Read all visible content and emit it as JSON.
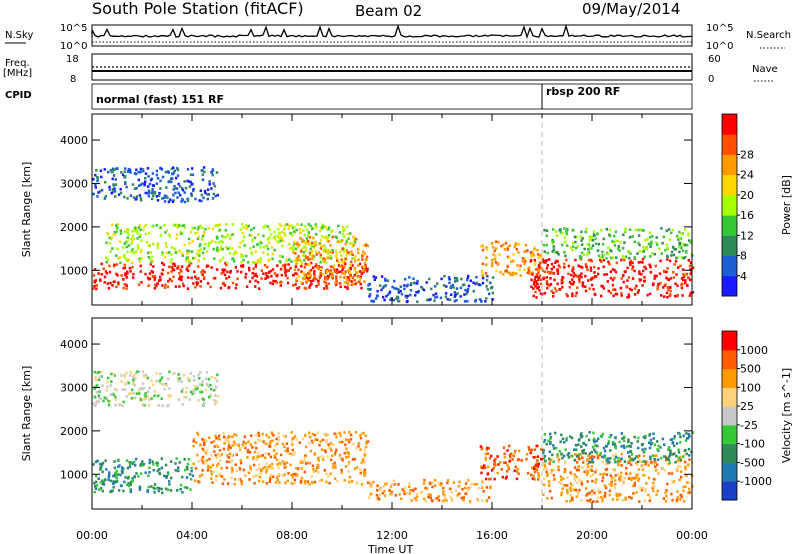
{
  "header": {
    "title": "South Pole Station (fitACF)",
    "beam": "Beam 02",
    "date": "09/May/2014"
  },
  "summary": {
    "nsky_label": "N.Sky",
    "nsky_ticks": [
      "10^5",
      "10^0"
    ],
    "nsearch_label": "N.Search",
    "nsearch_ticks": [
      "10^5",
      "10^0"
    ],
    "freq_label": "Freq.",
    "freq_unit": "[MHz]",
    "freq_ticks": [
      "18",
      "8"
    ],
    "nave_label": "Nave",
    "nave_ticks": [
      "60",
      "0"
    ],
    "cpid_label": "CPID",
    "cpid_segments": [
      {
        "label": "normal (fast) 151 RF",
        "start_hour": 0
      },
      {
        "label": "rbsp 200 RF",
        "start_hour": 18
      }
    ]
  },
  "chart_data": [
    {
      "type": "heatmap",
      "name": "power",
      "title": "",
      "xlabel": "Time UT",
      "ylabel": "Slant Range [km]",
      "xlim": [
        0,
        24
      ],
      "ylim": [
        200,
        4600
      ],
      "x_ticks": [
        "00:00",
        "04:00",
        "08:00",
        "12:00",
        "16:00",
        "20:00",
        "00:00"
      ],
      "y_ticks": [
        1000,
        2000,
        3000,
        4000
      ],
      "colorbar": {
        "label": "Power [dB]",
        "ticks": [
          "4",
          "8",
          "12",
          "16",
          "20",
          "24",
          "28"
        ],
        "colors": [
          "#1a1aff",
          "#1c5ed6",
          "#2e8b57",
          "#37c837",
          "#a6ff00",
          "#ffd700",
          "#ff9b00",
          "#ff5000",
          "#ff0000"
        ]
      },
      "regions": [
        {
          "t0": 0.0,
          "t1": 11.0,
          "r0": 600,
          "r1": 1200,
          "level": 8
        },
        {
          "t0": 0.5,
          "t1": 10.5,
          "r0": 1200,
          "r1": 2100,
          "level": 4
        },
        {
          "t0": 0.0,
          "t1": 5.0,
          "r0": 2600,
          "r1": 3400,
          "level": 1
        },
        {
          "t0": 8.0,
          "t1": 11.0,
          "r0": 700,
          "r1": 1800,
          "level": 6
        },
        {
          "t0": 11.0,
          "t1": 16.0,
          "r0": 300,
          "r1": 900,
          "level": 1
        },
        {
          "t0": 15.5,
          "t1": 18.0,
          "r0": 900,
          "r1": 1700,
          "level": 6
        },
        {
          "t0": 17.5,
          "t1": 24.0,
          "r0": 400,
          "r1": 1300,
          "level": 8
        },
        {
          "t0": 18.0,
          "t1": 24.0,
          "r0": 1300,
          "r1": 2000,
          "level": 3
        }
      ]
    },
    {
      "type": "heatmap",
      "name": "velocity",
      "title": "",
      "xlabel": "Time UT",
      "ylabel": "Slant Range [km]",
      "xlim": [
        0,
        24
      ],
      "ylim": [
        200,
        4600
      ],
      "x_ticks": [
        "00:00",
        "04:00",
        "08:00",
        "12:00",
        "16:00",
        "20:00",
        "00:00"
      ],
      "y_ticks": [
        1000,
        2000,
        3000,
        4000
      ],
      "colorbar": {
        "label": "Velocity [m s^-1]",
        "ticks": [
          "1000",
          "500",
          "100",
          "25",
          "-25",
          "-100",
          "-500",
          "-1000"
        ],
        "colors": [
          "#1a3fc8",
          "#1f7ab0",
          "#2e8b57",
          "#37c837",
          "#c8c8c8",
          "#ffd27a",
          "#ff9b00",
          "#ff5a00",
          "#ff0000"
        ]
      },
      "regions": [
        {
          "t0": 0.0,
          "t1": 4.0,
          "r0": 600,
          "r1": 1400,
          "level": 2
        },
        {
          "t0": 4.0,
          "t1": 11.0,
          "r0": 800,
          "r1": 2000,
          "level": 6
        },
        {
          "t0": 0.0,
          "t1": 5.0,
          "r0": 2600,
          "r1": 3400,
          "level": 4
        },
        {
          "t0": 11.0,
          "t1": 16.0,
          "r0": 400,
          "r1": 900,
          "level": 6
        },
        {
          "t0": 15.5,
          "t1": 18.0,
          "r0": 900,
          "r1": 1700,
          "level": 7
        },
        {
          "t0": 18.0,
          "t1": 24.0,
          "r0": 400,
          "r1": 1500,
          "level": 6
        },
        {
          "t0": 18.0,
          "t1": 24.0,
          "r0": 1300,
          "r1": 2000,
          "level": 2
        }
      ]
    }
  ]
}
